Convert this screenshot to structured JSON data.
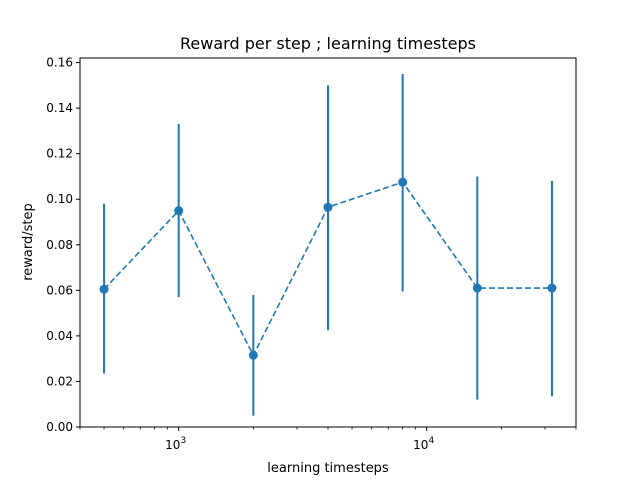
{
  "chart_data": {
    "type": "line",
    "title": "Reward per step ; learning timesteps",
    "xlabel": "learning timesteps",
    "ylabel": "reward/step",
    "x_scale": "log",
    "xlim": [
      400,
      40000
    ],
    "ylim": [
      0.0,
      0.162
    ],
    "grid": false,
    "y_ticks": [
      0.0,
      0.02,
      0.04,
      0.06,
      0.08,
      0.1,
      0.12,
      0.14,
      0.16
    ],
    "y_tick_labels": [
      "0.00",
      "0.02",
      "0.04",
      "0.06",
      "0.08",
      "0.10",
      "0.12",
      "0.14",
      "0.16"
    ],
    "x_major_ticks": [
      {
        "value": 1000,
        "base": "10",
        "exp": "3"
      },
      {
        "value": 10000,
        "base": "10",
        "exp": "4"
      }
    ],
    "x_minor_ticks": [
      400,
      500,
      600,
      700,
      800,
      900,
      2000,
      3000,
      4000,
      5000,
      6000,
      7000,
      8000,
      9000,
      20000,
      30000,
      40000
    ],
    "series": [
      {
        "color": "#1f77b4",
        "line_style": "dashed",
        "marker": "circle",
        "x": [
          500,
          1000,
          2000,
          4000,
          8000,
          16000,
          32000
        ],
        "y": [
          0.0605,
          0.095,
          0.0315,
          0.0965,
          0.1075,
          0.061,
          0.061
        ],
        "error_low": [
          0.0235,
          0.057,
          0.005,
          0.0425,
          0.0595,
          0.012,
          0.0135
        ],
        "error_high": [
          0.098,
          0.133,
          0.058,
          0.15,
          0.155,
          0.11,
          0.108
        ]
      }
    ],
    "axes_color": "#000000"
  }
}
